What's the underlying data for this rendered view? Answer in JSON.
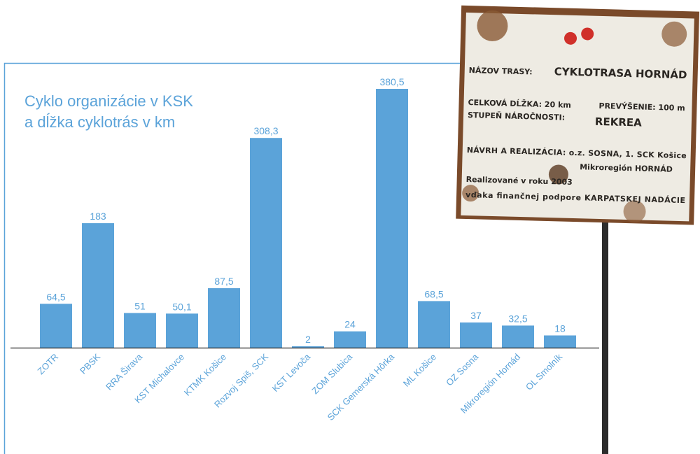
{
  "chart_data": {
    "type": "bar",
    "title": [
      "Cyklo organizácie v KSK",
      "a dĺžka cyklotrás v km"
    ],
    "categories": [
      "ZOTR",
      "PBSK",
      "RRA Širava",
      "KST Michalovce",
      "KTMK Košice",
      "Rozvoj Spiš, SCK",
      "KST Levoča",
      "ZOM Slubica",
      "SCK Gemerská Hôrka",
      "ML Košice",
      "OZ Sosna",
      "Mikroregión Hornád",
      "OL Smolník"
    ],
    "values": [
      64.5,
      183,
      51,
      50.1,
      87.5,
      308.3,
      2,
      24,
      380.5,
      68.5,
      37,
      32.5,
      18
    ],
    "value_labels": [
      "64,5",
      "183",
      "51",
      "50,1",
      "87,5",
      "308,3",
      "2",
      "24",
      "380,5",
      "68,5",
      "37",
      "32,5",
      "18"
    ],
    "color": "#5ba3d9"
  },
  "sign": {
    "texts": [
      "NÁZOV TRASY:",
      "CYKLOTRASA HORNÁD",
      "CELKOVÁ DĹŽKA: 20 km",
      "PREVÝŠENIE: 100 m",
      "STUPEŇ NÁROČNOSTI:",
      "REKREA",
      "NÁVRH A REALIZÁCIA: o.z. SOSNA, 1. SCK Košice",
      "Mikroregión HORNÁD",
      "Realizované v roku 2003",
      "vďaka finančnej podpore KARPATSKEJ NADÁCIE"
    ]
  }
}
